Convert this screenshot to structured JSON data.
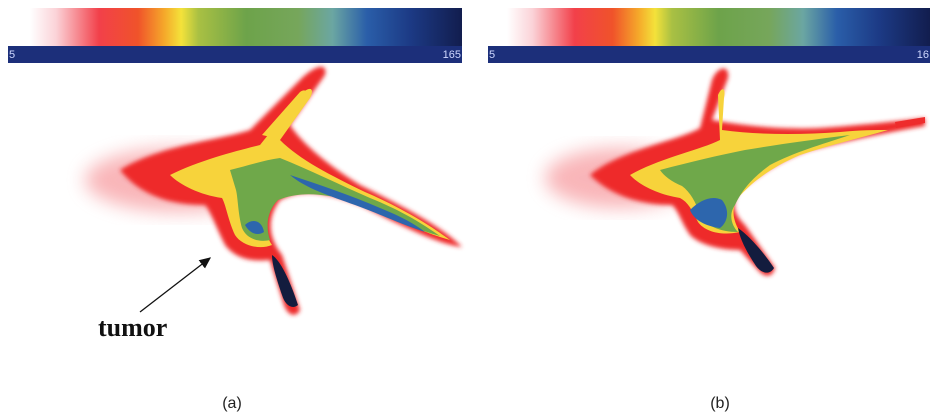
{
  "panels": [
    {
      "colorbar": {
        "min": "5",
        "max": "165"
      },
      "annotation": "tumor",
      "label": "(a)"
    },
    {
      "colorbar": {
        "min": "5",
        "max": "16"
      },
      "label": "(b)"
    }
  ]
}
